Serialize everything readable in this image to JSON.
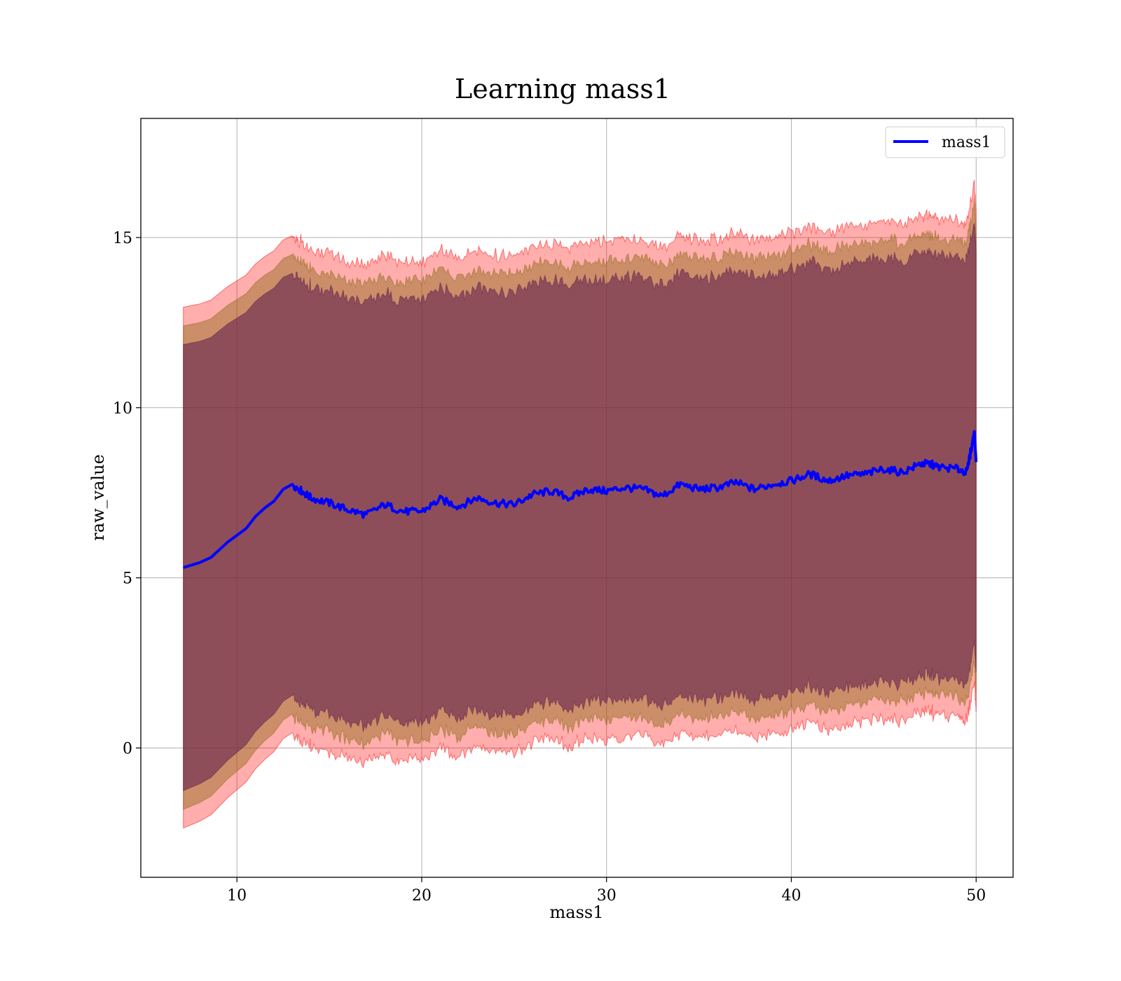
{
  "chart_data": {
    "type": "line",
    "title": "Learning mass1",
    "xlabel": "mass1",
    "ylabel": "raw_value",
    "xlim": [
      4.8,
      52.0
    ],
    "ylim": [
      -3.8,
      18.5
    ],
    "xticks": [
      10,
      20,
      30,
      40,
      50
    ],
    "yticks": [
      0,
      5,
      10,
      15
    ],
    "grid": true,
    "legend_position": "top-right",
    "colors": {
      "line": "#0000ff",
      "band_outer": "#ff0000",
      "band_middle": "#8b6914",
      "band_inner": "#5c1a4d",
      "grid": "#b0b0b0"
    },
    "series": [
      {
        "name": "mass1",
        "x": [
          7.1,
          8.0,
          8.6,
          9.0,
          9.5,
          10.0,
          10.5,
          11.0,
          11.5,
          12.0,
          12.5,
          13.0,
          13.5,
          14.0,
          15.0,
          16.0,
          17.0,
          18.0,
          19.0,
          20.0,
          21.0,
          22.0,
          23.0,
          24.0,
          25.0,
          26.0,
          27.0,
          28.0,
          29.0,
          30.0,
          31.0,
          32.0,
          33.0,
          34.0,
          35.0,
          36.0,
          37.0,
          38.0,
          39.0,
          40.0,
          41.0,
          42.0,
          43.0,
          44.0,
          45.0,
          46.0,
          47.0,
          47.5,
          48.0,
          49.0,
          49.5,
          49.9,
          50.0
        ],
        "y": [
          5.3,
          5.45,
          5.6,
          5.8,
          6.05,
          6.25,
          6.45,
          6.8,
          7.05,
          7.25,
          7.6,
          7.75,
          7.55,
          7.35,
          7.2,
          7.0,
          6.85,
          7.15,
          6.95,
          6.95,
          7.3,
          7.1,
          7.35,
          7.2,
          7.15,
          7.45,
          7.55,
          7.35,
          7.6,
          7.55,
          7.65,
          7.6,
          7.4,
          7.75,
          7.6,
          7.65,
          7.8,
          7.6,
          7.75,
          7.85,
          8.05,
          7.85,
          8.0,
          8.05,
          8.2,
          8.1,
          8.35,
          8.35,
          8.25,
          8.2,
          8.1,
          9.3,
          8.4
        ]
      }
    ]
  }
}
